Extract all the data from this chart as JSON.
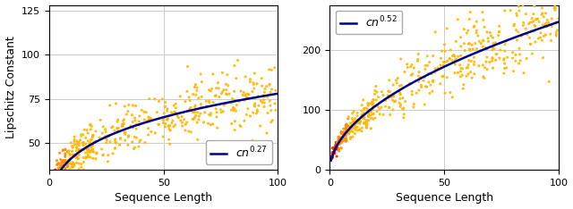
{
  "left_plot": {
    "exponent": 0.27,
    "c1": 22.5,
    "ylabel": "Lipschitz Constant",
    "xlabel": "Sequence Length",
    "xlim": [
      0,
      100
    ],
    "ylim": [
      35,
      128
    ],
    "yticks": [
      50,
      75,
      100,
      125
    ],
    "xticks": [
      0,
      50,
      100
    ],
    "legend_label": "$cn^{0.27}$",
    "legend_loc": "lower right"
  },
  "right_plot": {
    "exponent": 0.52,
    "c2": 22.5,
    "ylabel": "",
    "xlabel": "Sequence Length",
    "xlim": [
      0,
      100
    ],
    "ylim": [
      0,
      275
    ],
    "yticks": [
      0,
      100,
      200
    ],
    "xticks": [
      0,
      50,
      100
    ],
    "legend_label": "$cn^{0.52}$",
    "legend_loc": "upper left"
  },
  "curve_color": "#00008B",
  "scatter_color_main": "#FFB700",
  "scatter_color_low": "#FF2200",
  "scatter_color_mid": "#FF8C00",
  "grid_color": "#CCCCCC",
  "bg_color": "#FFFFFF",
  "seed": 42,
  "n_points": 400
}
